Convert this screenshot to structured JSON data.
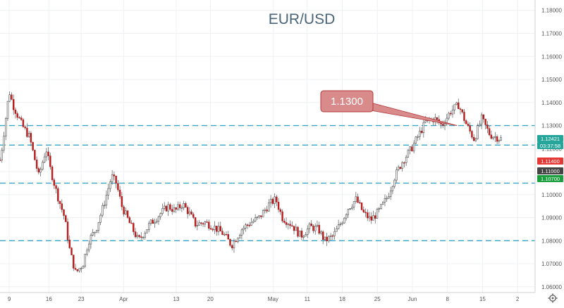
{
  "chart_data": {
    "type": "candlestick",
    "title": "EUR/USD",
    "y_axis": {
      "position": "right",
      "range": [
        1.0575,
        1.1845
      ],
      "ticks": [
        "1.18000",
        "1.17000",
        "1.16000",
        "1.15000",
        "1.14000",
        "1.13000",
        "1.12000",
        "1.11000",
        "1.10000",
        "1.09000",
        "1.08000",
        "1.07000",
        "1.06000"
      ]
    },
    "x_axis": {
      "ticks": [
        "9",
        "16",
        "23",
        "Apr",
        "13",
        "20",
        "May",
        "11",
        "18",
        "25",
        "Jun",
        "8",
        "15",
        "2"
      ]
    },
    "grid": true,
    "horizontal_levels": [
      1.13,
      1.1215,
      1.105,
      1.08
    ],
    "callout": {
      "label": "1.1300",
      "value": 1.13
    },
    "price_badges": [
      {
        "label": "1.12421",
        "color": "#26a69a"
      },
      {
        "label": "03:37:58",
        "color": "#26a69a"
      },
      {
        "label": "1.11400",
        "color": "#e53935"
      },
      {
        "label": "1.11000",
        "color": "#444444"
      },
      {
        "label": "1.10700",
        "color": "#1b9e3e"
      }
    ],
    "colors": {
      "up": "#26a69a",
      "down": "#b71c1c",
      "level_line": "#3aa6c8",
      "callout": "#d98b8b"
    },
    "path": [
      [
        0,
        1.115
      ],
      [
        0.2,
        1.12
      ],
      [
        1,
        1.145
      ],
      [
        1.4,
        1.139
      ],
      [
        2.4,
        1.13
      ],
      [
        3.2,
        1.125
      ],
      [
        4.2,
        1.108
      ],
      [
        5,
        1.12
      ],
      [
        5.4,
        1.112
      ],
      [
        6.2,
        1.1
      ],
      [
        7,
        1.09
      ],
      [
        7.6,
        1.075
      ],
      [
        8.2,
        1.066
      ],
      [
        9,
        1.07
      ],
      [
        9.6,
        1.08
      ],
      [
        10.4,
        1.085
      ],
      [
        11.2,
        1.095
      ],
      [
        12.1,
        1.108
      ],
      [
        12.6,
        1.105
      ],
      [
        13.2,
        1.095
      ],
      [
        14,
        1.088
      ],
      [
        15,
        1.08
      ],
      [
        16.2,
        1.087
      ],
      [
        17.2,
        1.091
      ],
      [
        18.2,
        1.095
      ],
      [
        19,
        1.093
      ],
      [
        19.8,
        1.096
      ],
      [
        20.5,
        1.092
      ],
      [
        21.2,
        1.087
      ],
      [
        22.2,
        1.088
      ],
      [
        23.2,
        1.086
      ],
      [
        24.2,
        1.083
      ],
      [
        25.1,
        1.078
      ],
      [
        26.2,
        1.085
      ],
      [
        27.2,
        1.088
      ],
      [
        28.1,
        1.09
      ],
      [
        29.2,
        1.096
      ],
      [
        29.9,
        1.098
      ],
      [
        30.6,
        1.09
      ],
      [
        31.6,
        1.087
      ],
      [
        32.6,
        1.082
      ],
      [
        33.6,
        1.086
      ],
      [
        34.5,
        1.085
      ],
      [
        35.2,
        1.08
      ],
      [
        36.1,
        1.082
      ],
      [
        37,
        1.088
      ],
      [
        37.7,
        1.094
      ],
      [
        38.6,
        1.098
      ],
      [
        39.4,
        1.092
      ],
      [
        40.2,
        1.089
      ],
      [
        41.1,
        1.093
      ],
      [
        42,
        1.099
      ],
      [
        42.8,
        1.108
      ],
      [
        43.7,
        1.115
      ],
      [
        44.6,
        1.12
      ],
      [
        45.4,
        1.126
      ],
      [
        46.2,
        1.132
      ],
      [
        47.1,
        1.133
      ],
      [
        47.9,
        1.13
      ],
      [
        48.8,
        1.136
      ],
      [
        49.7,
        1.139
      ],
      [
        50.6,
        1.13
      ],
      [
        51.4,
        1.124
      ],
      [
        52.2,
        1.133
      ],
      [
        53.1,
        1.126
      ],
      [
        54.3,
        1.1242
      ]
    ],
    "y_ticks_values": [
      1.18,
      1.17,
      1.16,
      1.15,
      1.14,
      1.13,
      1.12,
      1.11,
      1.1,
      1.09,
      1.08,
      1.07,
      1.06
    ],
    "x_tick_positions": [
      1,
      5.3,
      8.8,
      13.4,
      19.1,
      22.8,
      29.6,
      33.3,
      37.1,
      40.9,
      44.7,
      48.5,
      52.3,
      56.1
    ],
    "candle_count": 260,
    "x_span": 58,
    "seed": 7
  }
}
